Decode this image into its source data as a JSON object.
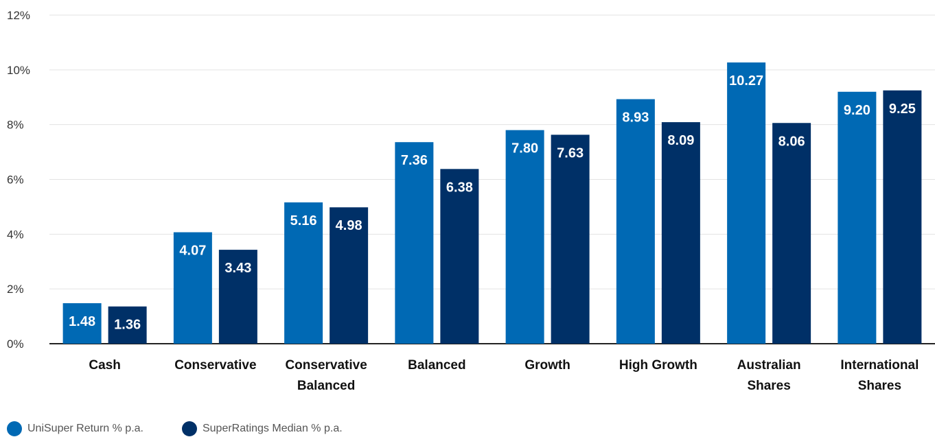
{
  "chart_data": {
    "type": "bar",
    "categories": [
      [
        "Cash"
      ],
      [
        "Conservative"
      ],
      [
        "Conservative",
        "Balanced"
      ],
      [
        "Balanced"
      ],
      [
        "Growth"
      ],
      [
        "High Growth"
      ],
      [
        "Australian",
        "Shares"
      ],
      [
        "International",
        "Shares"
      ]
    ],
    "series": [
      {
        "name": "UniSuper Return % p.a.",
        "color": "#0069B4",
        "values": [
          1.48,
          4.07,
          5.16,
          7.36,
          7.8,
          8.93,
          10.27,
          9.2
        ],
        "labels": [
          "1.48",
          "4.07",
          "5.16",
          "7.36",
          "7.80",
          "8.93",
          "10.27",
          "9.20"
        ]
      },
      {
        "name": "SuperRatings Median % p.a.",
        "color": "#003067",
        "values": [
          1.36,
          3.43,
          4.98,
          6.38,
          7.63,
          8.09,
          8.06,
          9.25
        ],
        "labels": [
          "1.36",
          "3.43",
          "4.98",
          "6.38",
          "7.63",
          "8.09",
          "8.06",
          "9.25"
        ]
      }
    ],
    "y_ticks": [
      "0%",
      "2%",
      "4%",
      "6%",
      "8%",
      "10%",
      "12%"
    ],
    "ylim": [
      0,
      12
    ],
    "grid": true,
    "legend_position": "bottom-left",
    "title": "",
    "xlabel": "",
    "ylabel": ""
  }
}
